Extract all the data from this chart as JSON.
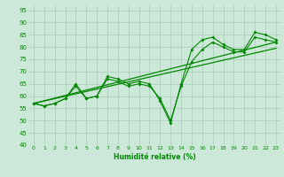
{
  "xlabel": "Humidité relative (%)",
  "xlim": [
    -0.5,
    23.5
  ],
  "ylim": [
    40,
    97
  ],
  "yticks": [
    40,
    45,
    50,
    55,
    60,
    65,
    70,
    75,
    80,
    85,
    90,
    95
  ],
  "xticks": [
    0,
    1,
    2,
    3,
    4,
    5,
    6,
    7,
    8,
    9,
    10,
    11,
    12,
    13,
    14,
    15,
    16,
    17,
    18,
    19,
    20,
    21,
    22,
    23
  ],
  "background_color": "#cce8d8",
  "grid_color": "#aaccbb",
  "line_color": "#008800",
  "line1": [
    57,
    56,
    57,
    59,
    65,
    59,
    60,
    68,
    67,
    65,
    66,
    65,
    58,
    49,
    65,
    79,
    83,
    84,
    81,
    79,
    79,
    86,
    85,
    83
  ],
  "line2": [
    57,
    56,
    57,
    59,
    64,
    59,
    60,
    67,
    66,
    64,
    65,
    64,
    59,
    50,
    64,
    74,
    79,
    82,
    80,
    78,
    78,
    84,
    83,
    82
  ],
  "trend1_x": [
    0,
    23
  ],
  "trend1_y": [
    57.0,
    82.0
  ],
  "trend2_x": [
    0,
    23
  ],
  "trend2_y": [
    57.0,
    79.5
  ]
}
